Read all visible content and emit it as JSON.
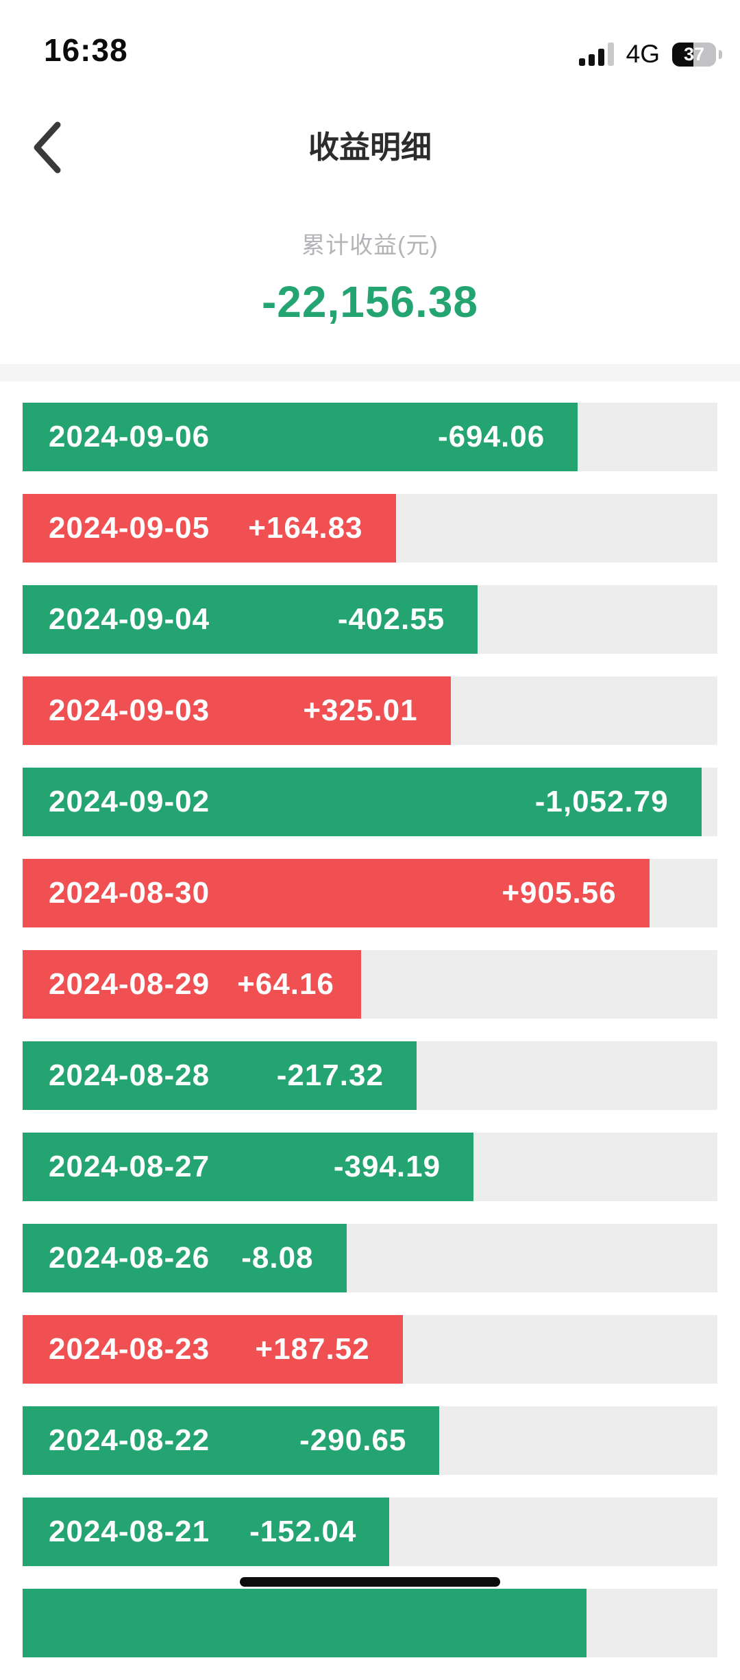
{
  "status_bar": {
    "time": "16:38",
    "network": "4G",
    "battery_level": "37"
  },
  "header": {
    "title": "收益明细"
  },
  "summary": {
    "label": "累计收益(元)",
    "value": "-22,156.38"
  },
  "colors": {
    "green_loss": "#24a471",
    "red_gain": "#f05051",
    "track_gray": "#ededed",
    "band_gray": "#f5f5f6",
    "summary_green": "#24a471"
  },
  "rows": [
    {
      "date": "2024-09-06",
      "value": "-694.06",
      "type": "loss",
      "width_pct": 79.9
    },
    {
      "date": "2024-09-05",
      "value": "+164.83",
      "type": "gain",
      "width_pct": 53.7
    },
    {
      "date": "2024-09-04",
      "value": "-402.55",
      "type": "loss",
      "width_pct": 65.5
    },
    {
      "date": "2024-09-03",
      "value": "+325.01",
      "type": "gain",
      "width_pct": 61.6
    },
    {
      "date": "2024-09-02",
      "value": "-1,052.79",
      "type": "loss",
      "width_pct": 97.7
    },
    {
      "date": "2024-08-30",
      "value": "+905.56",
      "type": "gain",
      "width_pct": 90.2
    },
    {
      "date": "2024-08-29",
      "value": "+64.16",
      "type": "gain",
      "width_pct": 48.7
    },
    {
      "date": "2024-08-28",
      "value": "-217.32",
      "type": "loss",
      "width_pct": 56.7
    },
    {
      "date": "2024-08-27",
      "value": "-394.19",
      "type": "loss",
      "width_pct": 64.9
    },
    {
      "date": "2024-08-26",
      "value": "-8.08",
      "type": "loss",
      "width_pct": 46.6
    },
    {
      "date": "2024-08-23",
      "value": "+187.52",
      "type": "gain",
      "width_pct": 54.7
    },
    {
      "date": "2024-08-22",
      "value": "-290.65",
      "type": "loss",
      "width_pct": 60.0
    },
    {
      "date": "2024-08-21",
      "value": "-152.04",
      "type": "loss",
      "width_pct": 52.8
    },
    {
      "date": "",
      "value": "",
      "type": "loss",
      "width_pct": 81.2
    }
  ]
}
